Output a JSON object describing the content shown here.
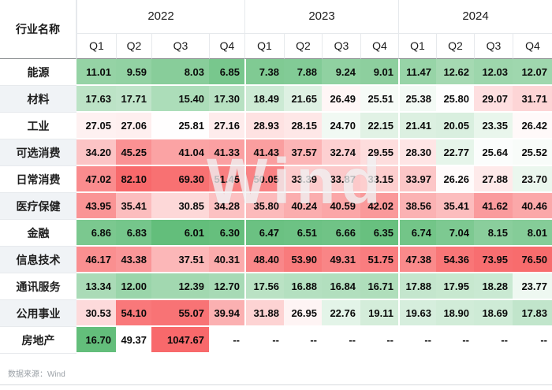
{
  "watermark": "Wind",
  "chart_data": {
    "type": "heatmap",
    "title": "",
    "row_label_header": "行业名称",
    "years": [
      "2022",
      "2023",
      "2024"
    ],
    "quarters": [
      "Q1",
      "Q2",
      "Q3",
      "Q4"
    ],
    "columns": [
      "2022Q1",
      "2022Q2",
      "2022Q3",
      "2022Q4",
      "2023Q1",
      "2023Q2",
      "2023Q3",
      "2023Q4",
      "2024Q1",
      "2024Q2",
      "2024Q3",
      "2024Q4"
    ],
    "missing_marker": "--",
    "colorscale": {
      "low": "#63BE7B",
      "mid": "#FFFFFF",
      "high": "#F8696B",
      "method": "rank-percentile"
    },
    "source": "数据来源：Wind",
    "rows": [
      {
        "name": "能源",
        "scale": "global",
        "values": [
          "11.01",
          "9.59",
          "8.03",
          "6.85",
          "7.38",
          "7.88",
          "9.24",
          "9.01",
          "11.47",
          "12.62",
          "12.03",
          "12.07"
        ]
      },
      {
        "name": "材料",
        "scale": "global",
        "values": [
          "17.63",
          "17.71",
          "15.40",
          "17.30",
          "18.49",
          "21.65",
          "26.49",
          "25.51",
          "25.38",
          "25.80",
          "29.07",
          "31.71"
        ]
      },
      {
        "name": "工业",
        "scale": "global",
        "values": [
          "27.05",
          "27.06",
          "25.81",
          "27.16",
          "28.93",
          "28.15",
          "24.70",
          "22.15",
          "21.41",
          "20.05",
          "23.35",
          "26.42"
        ]
      },
      {
        "name": "可选消费",
        "scale": "global",
        "values": [
          "34.20",
          "45.25",
          "41.04",
          "41.33",
          "41.43",
          "37.57",
          "32.74",
          "29.55",
          "28.30",
          "22.77",
          "25.64",
          "25.52"
        ]
      },
      {
        "name": "日常消费",
        "scale": "global",
        "values": [
          "47.02",
          "82.10",
          "69.30",
          "51.45",
          "50.05",
          "33.39",
          "33.87",
          "33.15",
          "33.97",
          "26.26",
          "27.88",
          "23.70"
        ]
      },
      {
        "name": "医疗保健",
        "scale": "global",
        "values": [
          "43.95",
          "35.41",
          "30.85",
          "34.28",
          "35.80",
          "40.24",
          "40.59",
          "42.02",
          "38.56",
          "35.41",
          "41.62",
          "40.46"
        ]
      },
      {
        "name": "金融",
        "scale": "global",
        "values": [
          "6.86",
          "6.83",
          "6.01",
          "6.30",
          "6.47",
          "6.51",
          "6.66",
          "6.35",
          "6.74",
          "7.04",
          "8.15",
          "8.01"
        ]
      },
      {
        "name": "信息技术",
        "scale": "global",
        "values": [
          "46.17",
          "43.38",
          "37.51",
          "40.31",
          "48.40",
          "53.90",
          "49.31",
          "51.75",
          "47.38",
          "54.36",
          "73.95",
          "76.50"
        ]
      },
      {
        "name": "通讯服务",
        "scale": "global",
        "values": [
          "13.34",
          "12.00",
          "12.39",
          "12.70",
          "17.56",
          "16.88",
          "16.84",
          "16.71",
          "17.88",
          "17.95",
          "18.28",
          "23.77"
        ]
      },
      {
        "name": "公用事业",
        "scale": "global",
        "values": [
          "30.53",
          "54.10",
          "55.07",
          "39.94",
          "31.88",
          "26.95",
          "22.76",
          "19.11",
          "19.63",
          "18.90",
          "18.69",
          "17.83"
        ]
      },
      {
        "name": "房地产",
        "scale": "row",
        "values": [
          "16.70",
          "49.37",
          "1047.67",
          "--",
          "--",
          "--",
          "--",
          "--",
          "--",
          "--",
          "--",
          "--"
        ]
      }
    ]
  }
}
